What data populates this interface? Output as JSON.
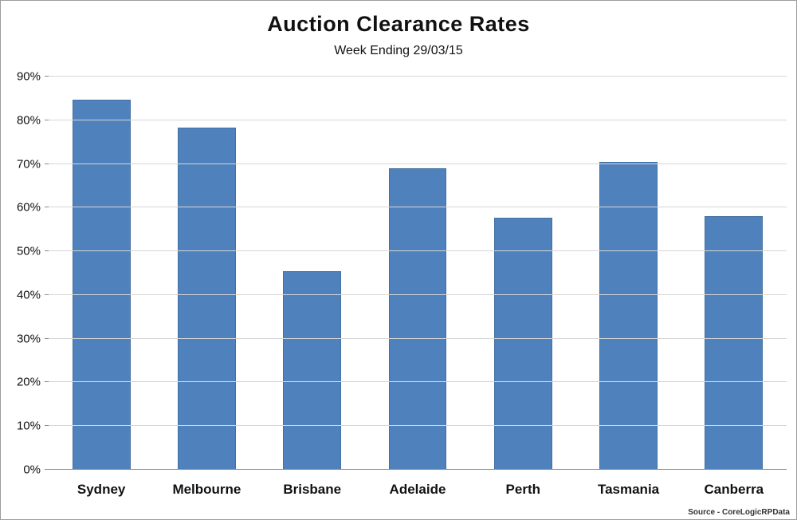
{
  "chart_data": {
    "type": "bar",
    "title": "Auction Clearance Rates",
    "subtitle": "Week Ending 29/03/15",
    "categories": [
      "Sydney",
      "Melbourne",
      "Brisbane",
      "Adelaide",
      "Perth",
      "Tasmania",
      "Canberra"
    ],
    "values": [
      84.7,
      78.4,
      45.5,
      69.0,
      57.7,
      70.5,
      58.0
    ],
    "ylim": [
      0,
      90
    ],
    "ytick_step": 10,
    "ytick_labels": [
      "0%",
      "10%",
      "20%",
      "30%",
      "40%",
      "50%",
      "60%",
      "70%",
      "80%",
      "90%"
    ],
    "grid": true,
    "legend": "none",
    "bar_color": "#4f81bd",
    "source": "Source - CoreLogicRPData"
  }
}
